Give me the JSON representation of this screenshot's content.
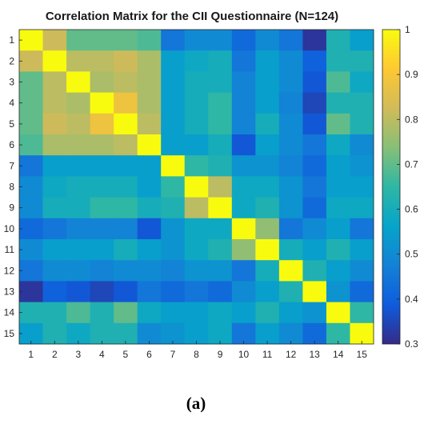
{
  "caption": "(a)",
  "chart_data": {
    "type": "heatmap",
    "title": "Correlation Matrix for the CII Questionnaire (N=124)",
    "xlabel": "",
    "ylabel": "",
    "x_categories": [
      "1",
      "2",
      "3",
      "4",
      "5",
      "6",
      "7",
      "8",
      "9",
      "10",
      "11",
      "12",
      "13",
      "14",
      "15"
    ],
    "y_categories": [
      "1",
      "2",
      "3",
      "4",
      "5",
      "6",
      "7",
      "8",
      "9",
      "10",
      "11",
      "12",
      "13",
      "14",
      "15"
    ],
    "values": [
      [
        1.0,
        0.82,
        0.7,
        0.7,
        0.7,
        0.68,
        0.45,
        0.5,
        0.5,
        0.42,
        0.5,
        0.45,
        0.32,
        0.62,
        0.55
      ],
      [
        0.82,
        1.0,
        0.8,
        0.8,
        0.82,
        0.78,
        0.55,
        0.58,
        0.6,
        0.45,
        0.55,
        0.5,
        0.4,
        0.62,
        0.62
      ],
      [
        0.7,
        0.8,
        1.0,
        0.78,
        0.8,
        0.78,
        0.55,
        0.6,
        0.6,
        0.48,
        0.55,
        0.5,
        0.38,
        0.68,
        0.58
      ],
      [
        0.7,
        0.8,
        0.78,
        1.0,
        0.88,
        0.78,
        0.55,
        0.6,
        0.65,
        0.48,
        0.55,
        0.48,
        0.35,
        0.62,
        0.62
      ],
      [
        0.7,
        0.82,
        0.8,
        0.88,
        1.0,
        0.8,
        0.55,
        0.6,
        0.65,
        0.48,
        0.6,
        0.5,
        0.38,
        0.7,
        0.62
      ],
      [
        0.68,
        0.78,
        0.78,
        0.78,
        0.8,
        1.0,
        0.55,
        0.55,
        0.6,
        0.38,
        0.55,
        0.5,
        0.45,
        0.58,
        0.5
      ],
      [
        0.45,
        0.55,
        0.55,
        0.55,
        0.55,
        0.55,
        1.0,
        0.65,
        0.62,
        0.52,
        0.52,
        0.48,
        0.42,
        0.55,
        0.52
      ],
      [
        0.5,
        0.58,
        0.6,
        0.6,
        0.6,
        0.55,
        0.65,
        1.0,
        0.8,
        0.58,
        0.58,
        0.52,
        0.45,
        0.55,
        0.55
      ],
      [
        0.5,
        0.6,
        0.6,
        0.65,
        0.65,
        0.6,
        0.62,
        0.8,
        1.0,
        0.58,
        0.62,
        0.52,
        0.42,
        0.58,
        0.58
      ],
      [
        0.42,
        0.45,
        0.48,
        0.48,
        0.48,
        0.38,
        0.52,
        0.58,
        0.58,
        1.0,
        0.75,
        0.45,
        0.5,
        0.55,
        0.45
      ],
      [
        0.5,
        0.55,
        0.55,
        0.55,
        0.6,
        0.55,
        0.52,
        0.58,
        0.62,
        0.75,
        1.0,
        0.6,
        0.55,
        0.62,
        0.55
      ],
      [
        0.45,
        0.5,
        0.5,
        0.48,
        0.5,
        0.5,
        0.48,
        0.52,
        0.52,
        0.45,
        0.6,
        1.0,
        0.62,
        0.55,
        0.5
      ],
      [
        0.32,
        0.4,
        0.38,
        0.35,
        0.38,
        0.45,
        0.42,
        0.45,
        0.42,
        0.5,
        0.55,
        0.62,
        1.0,
        0.52,
        0.42
      ],
      [
        0.62,
        0.62,
        0.68,
        0.62,
        0.7,
        0.58,
        0.55,
        0.55,
        0.58,
        0.55,
        0.62,
        0.55,
        0.52,
        1.0,
        0.65
      ],
      [
        0.55,
        0.62,
        0.58,
        0.62,
        0.62,
        0.5,
        0.52,
        0.55,
        0.58,
        0.45,
        0.55,
        0.5,
        0.42,
        0.65,
        1.0
      ]
    ],
    "colorbar": {
      "min": 0.3,
      "max": 1,
      "ticks": [
        "0.3",
        "0.4",
        "0.5",
        "0.6",
        "0.7",
        "0.8",
        "0.9",
        "1"
      ],
      "colormap": "parula",
      "colors": [
        "#352a87",
        "#0f5cdd",
        "#1481d6",
        "#06a4ca",
        "#2eb7a4",
        "#87bf77",
        "#d1bb59",
        "#fec832",
        "#f9fb0e"
      ]
    },
    "grid": false
  }
}
